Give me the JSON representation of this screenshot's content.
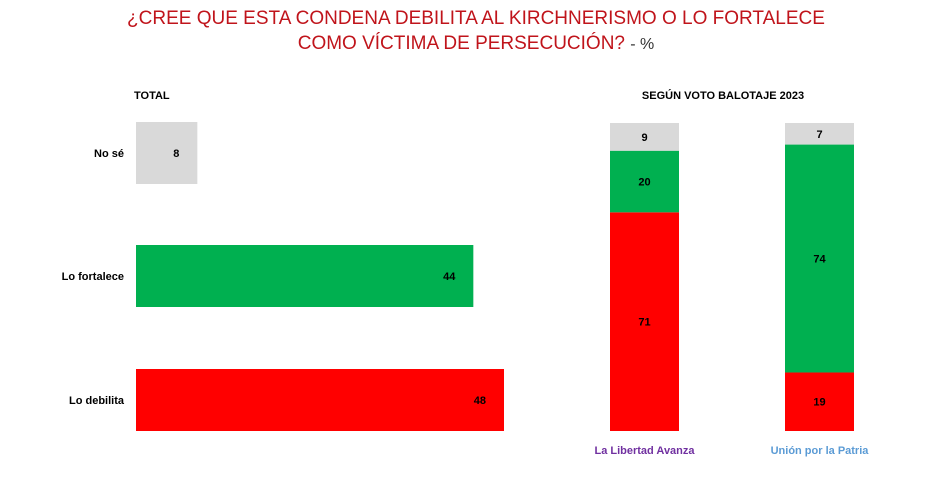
{
  "title": {
    "line1": "¿CREE QUE ESTA CONDENA DEBILITA AL KIRCHNERISMO O LO FORTALECE",
    "line2": "COMO VÍCTIMA DE PERSECUCIÓN?",
    "unit": "- %"
  },
  "colors": {
    "no_se": "#d9d9d9",
    "fortalece": "#00b050",
    "debilita": "#ff0000",
    "libertad_label": "#7030a0",
    "union_label": "#5b9bd5"
  },
  "chart_data": [
    {
      "type": "bar",
      "orientation": "horizontal",
      "header": "TOTAL",
      "categories": [
        "No sé",
        "Lo fortalece",
        "Lo debilita"
      ],
      "values": [
        8,
        44,
        48
      ],
      "xlim": [
        0,
        48
      ]
    },
    {
      "type": "bar",
      "stacked": true,
      "header": "SEGÚN VOTO BALOTAJE 2023",
      "categories": [
        "La Libertad Avanza",
        "Unión por la Patria"
      ],
      "series": [
        {
          "name": "Lo debilita",
          "values": [
            71,
            19
          ]
        },
        {
          "name": "Lo fortalece",
          "values": [
            20,
            74
          ]
        },
        {
          "name": "No sé",
          "values": [
            9,
            7
          ]
        }
      ],
      "ylim": [
        0,
        100
      ]
    }
  ]
}
